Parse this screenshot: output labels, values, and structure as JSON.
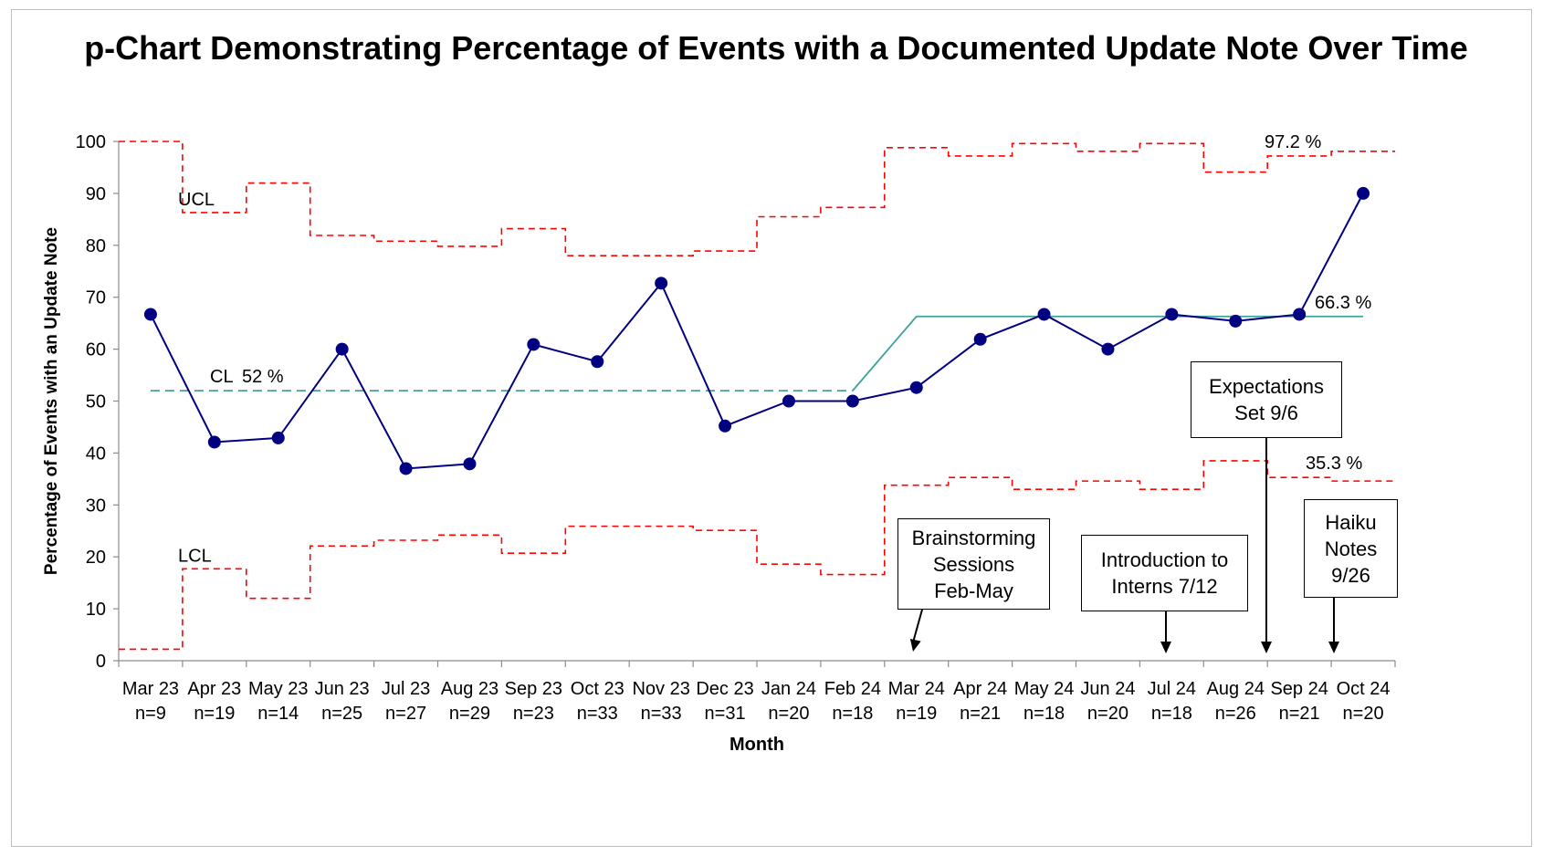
{
  "chart_data": {
    "type": "line",
    "title": "p-Chart Demonstrating Percentage of Events with a Documented Update Note Over Time",
    "xlabel": "Month",
    "ylabel": "Percentage of Events with an Update Note",
    "ylim": [
      0,
      100
    ],
    "yticks": [
      0,
      10,
      20,
      30,
      40,
      50,
      60,
      70,
      80,
      90,
      100
    ],
    "grid": false,
    "categories": [
      "Mar 23",
      "Apr 23",
      "May 23",
      "Jun 23",
      "Jul 23",
      "Aug 23",
      "Sep 23",
      "Oct 23",
      "Nov 23",
      "Dec 23",
      "Jan 24",
      "Feb 24",
      "Mar 24",
      "Apr 24",
      "May 24",
      "Jun 24",
      "Jul 24",
      "Aug 24",
      "Sep 24",
      "Oct 24"
    ],
    "sample_sizes": [
      "n=9",
      "n=19",
      "n=14",
      "n=25",
      "n=27",
      "n=29",
      "n=23",
      "n=33",
      "n=33",
      "n=31",
      "n=20",
      "n=18",
      "n=19",
      "n=21",
      "n=18",
      "n=20",
      "n=18",
      "n=26",
      "n=21",
      "n=20"
    ],
    "series": [
      {
        "name": "",
        "color": "#000080",
        "values": [
          66.7,
          42.1,
          42.9,
          60.0,
          37.0,
          37.9,
          60.9,
          57.6,
          72.7,
          45.2,
          50.0,
          50.0,
          52.6,
          61.9,
          66.7,
          60.0,
          66.7,
          65.4,
          66.7,
          90.0
        ]
      }
    ],
    "ucl": {
      "name": "UCL",
      "color": "#ff0000",
      "values": [
        100,
        86.3,
        92.0,
        81.9,
        80.8,
        79.8,
        83.2,
        78.0,
        78.0,
        78.9,
        85.5,
        87.3,
        98.8,
        97.2,
        99.6,
        98.1,
        99.6,
        94.1,
        97.2,
        98.1
      ]
    },
    "lcl": {
      "name": "LCL",
      "color": "#ff0000",
      "values": [
        2.2,
        17.7,
        12.0,
        22.1,
        23.2,
        24.2,
        20.7,
        25.9,
        25.9,
        25.1,
        18.6,
        16.6,
        33.8,
        35.3,
        33.0,
        34.6,
        33.0,
        38.5,
        35.3,
        34.6
      ]
    },
    "center_lines": [
      {
        "name": "CL",
        "value": 52,
        "from_index": 0,
        "to_index": 11,
        "style": "dashed",
        "color": "#2e8b8b"
      },
      {
        "name": "",
        "value": 66.3,
        "from_index": 12,
        "to_index": 19,
        "style": "solid",
        "color": "#3aa39a"
      }
    ],
    "labels": {
      "ucl": "UCL",
      "lcl": "LCL",
      "cl": "CL",
      "cl_value": "52 %",
      "new_cl_value": "66.3 %",
      "new_ucl_value": "97.2 %",
      "new_lcl_value": "35.3 %"
    },
    "annotations": [
      {
        "lines": [
          "Brainstorming",
          "Sessions",
          "Feb-May"
        ],
        "arrow_to_index": 12
      },
      {
        "lines": [
          "Introduction to",
          "Interns 7/12"
        ],
        "arrow_to_index": 16
      },
      {
        "lines": [
          "Expectations",
          "Set 9/6"
        ],
        "arrow_to_index": 17.5
      },
      {
        "lines": [
          "Haiku",
          "Notes",
          "9/26"
        ],
        "arrow_to_index": 18.5
      }
    ]
  }
}
